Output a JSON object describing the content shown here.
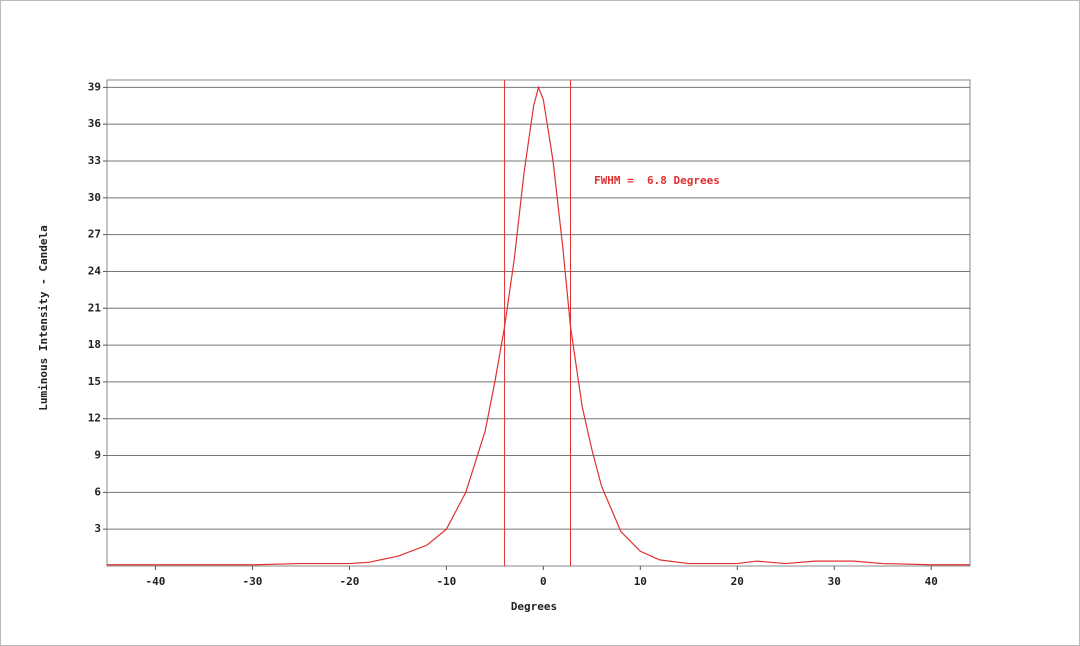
{
  "chart_data": {
    "type": "line",
    "x_label": "Degrees",
    "y_label": "Luminous Intensity - Candela",
    "annotation": "FWHM =  6.8 Degrees",
    "color": "#e03030",
    "marker_x": [
      -4.0,
      2.8
    ],
    "x": [
      -45,
      -30,
      -25,
      -20,
      -18,
      -15,
      -12,
      -10,
      -8,
      -6,
      -5,
      -4,
      -3,
      -2,
      -1,
      -0.5,
      0,
      1,
      2,
      2.8,
      4,
      5,
      6,
      8,
      10,
      12,
      15,
      20,
      22,
      25,
      28,
      32,
      35,
      40,
      44
    ],
    "values": [
      0.1,
      0.1,
      0.2,
      0.2,
      0.3,
      0.8,
      1.7,
      3,
      6,
      11,
      15,
      19.5,
      25,
      32,
      37.5,
      39,
      38,
      33,
      26,
      19.5,
      13,
      9.5,
      6.5,
      2.8,
      1.2,
      0.5,
      0.2,
      0.2,
      0.4,
      0.2,
      0.4,
      0.4,
      0.2,
      0.1,
      0.1
    ],
    "xlim": [
      -45,
      44
    ],
    "xticks": [
      -40,
      -30,
      -20,
      -10,
      0,
      10,
      20,
      30,
      40
    ],
    "ylim": [
      0,
      39.6
    ],
    "yticks": [
      3,
      6,
      9,
      12,
      15,
      18,
      21,
      24,
      27,
      30,
      33,
      36,
      39
    ],
    "grid": true
  }
}
